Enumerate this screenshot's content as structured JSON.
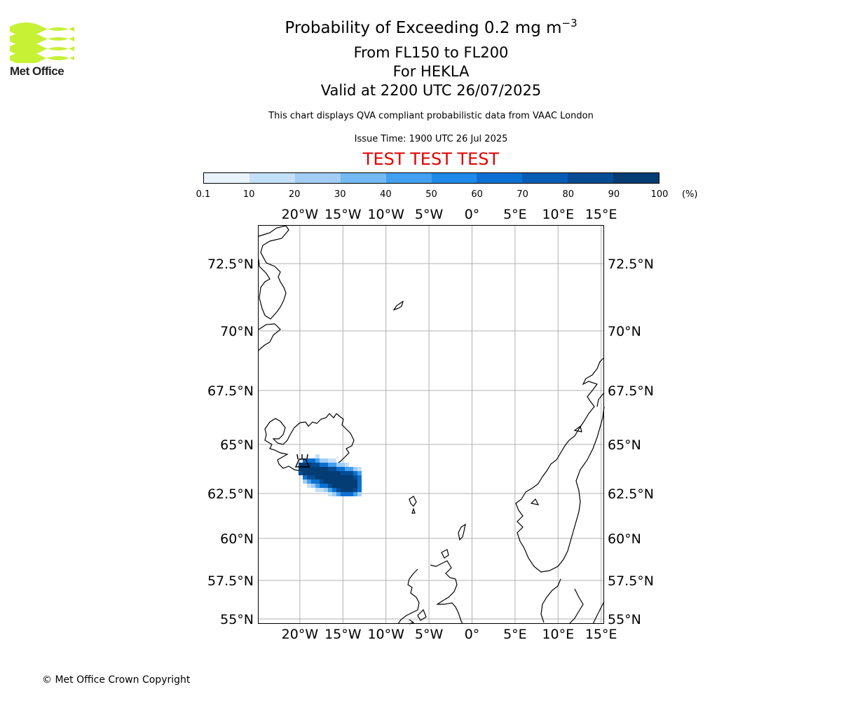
{
  "header": {
    "title_main": "Probability of Exceeding 0.2 mg m",
    "title_exponent": "−3",
    "flight_levels": "From FL150 to FL200",
    "volcano_line": "For HEKLA",
    "valid_time": "Valid at 2200 UTC 26/07/2025",
    "note": "This chart displays QVA compliant probabilistic data from VAAC London",
    "issue_time": "Issue Time: 1900 UTC 26 Jul 2025",
    "test_banner": "TEST TEST TEST"
  },
  "logo": {
    "text": "Met Office",
    "color": "#c6f135"
  },
  "colorbar": {
    "ticks": [
      "0.1",
      "10",
      "20",
      "30",
      "40",
      "50",
      "60",
      "70",
      "80",
      "90",
      "100"
    ],
    "unit": "(%)",
    "colors": [
      "#e9f3fd",
      "#c4e0f8",
      "#a2cdf4",
      "#74b9f2",
      "#43a0f0",
      "#1f8ae8",
      "#0c70d2",
      "#075db5",
      "#054c94",
      "#043c74",
      "#022f5a"
    ]
  },
  "map": {
    "lon_labels": [
      "20°W",
      "15°W",
      "10°W",
      "5°W",
      "0°",
      "5°E",
      "10°E",
      "15°E"
    ],
    "lat_labels": [
      "72.5°N",
      "70°N",
      "67.5°N",
      "65°N",
      "62.5°N",
      "60°N",
      "57.5°N",
      "55°N"
    ],
    "lon_ticks": [
      -20,
      -15,
      -10,
      -5,
      0,
      5,
      10,
      15
    ],
    "lat_ticks": [
      72.5,
      70,
      67.5,
      65,
      62.5,
      60,
      57.5,
      55
    ],
    "volcano": {
      "name": "HEKLA",
      "lat": 63.98,
      "lon": -19.7,
      "marker": "volcano-icon"
    }
  },
  "footer": {
    "copyright": "© Met Office Crown Copyright"
  }
}
